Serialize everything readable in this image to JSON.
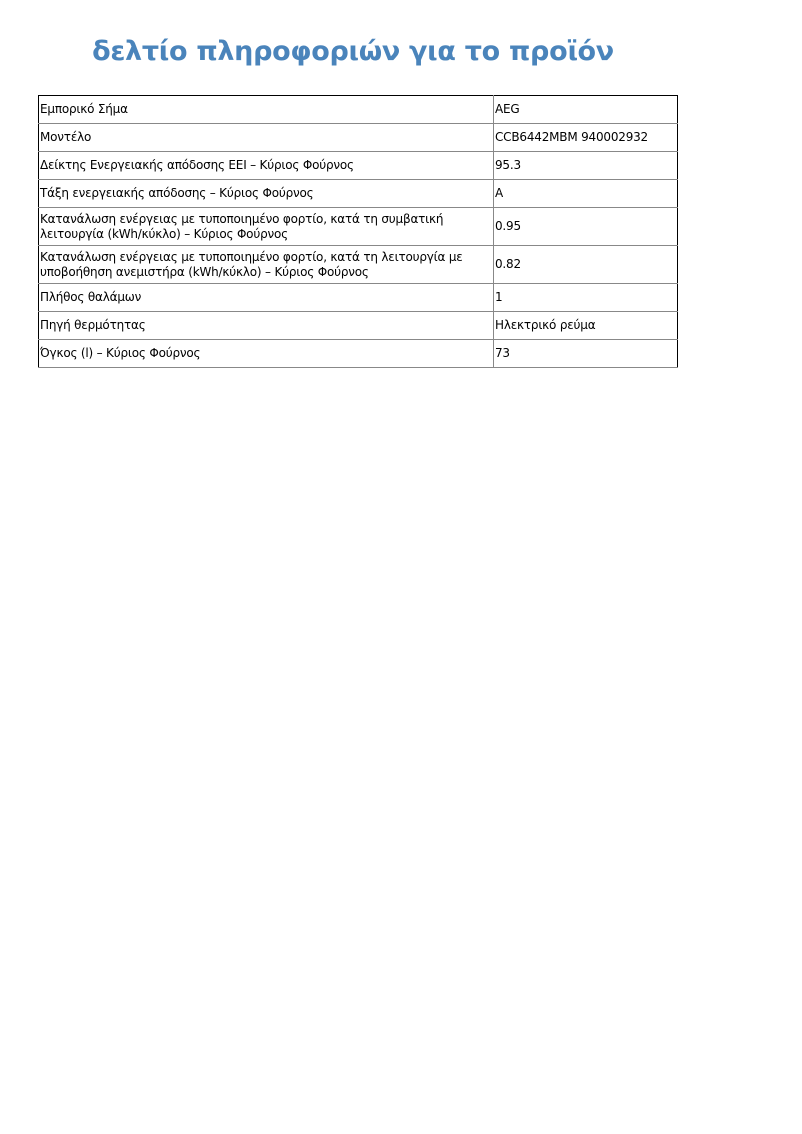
{
  "title": "δελτίο πληροφοριών για το προϊόν",
  "rows": [
    {
      "label": "Εμπορικό Σήμα",
      "value": "AEG"
    },
    {
      "label": "Μοντέλο",
      "value": "CCB6442MBM 940002932"
    },
    {
      "label": "Δείκτης Ενεργειακής απόδοσης EEI – Κύριος Φούρνος",
      "value": "95.3"
    },
    {
      "label": "Τάξη ενεργειακής απόδοσης – Κύριος Φούρνος",
      "value": "A"
    },
    {
      "label": "Κατανάλωση ενέργειας με τυποποιημένο φορτίο, κατά τη συμβατική λειτουργία (kWh/κύκλο) – Κύριος Φούρνος",
      "value": "0.95"
    },
    {
      "label": "Κατανάλωση ενέργειας με τυποποιημένο φορτίο, κατά τη λειτουργία με υποβοήθηση ανεμιστήρα (kWh/κύκλο) – Κύριος Φούρνος",
      "value": "0.82"
    },
    {
      "label": "Πλήθος θαλάμων",
      "value": "1"
    },
    {
      "label": "Πηγή θερμότητας",
      "value": "Ηλεκτρικό ρεύμα"
    },
    {
      "label": "Όγκος (l) – Κύριος Φούρνος",
      "value": "73"
    }
  ]
}
